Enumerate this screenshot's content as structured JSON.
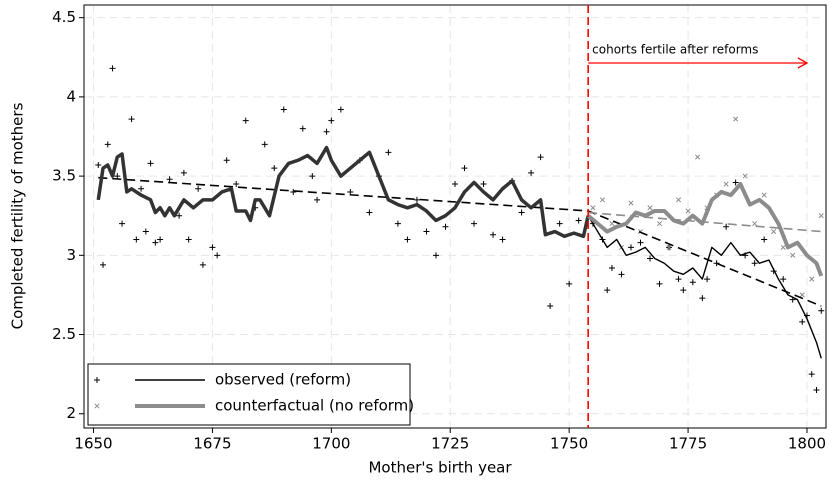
{
  "chart_data": {
    "type": "scatter",
    "xlabel": "Mother's birth year",
    "ylabel": "Completed fertility of mothers",
    "xlim": [
      1648,
      1804
    ],
    "ylim": [
      1.91,
      4.58
    ],
    "xticks": [
      1650,
      1675,
      1700,
      1725,
      1750,
      1775,
      1800
    ],
    "yticks": [
      2,
      2.5,
      3,
      3.5,
      4,
      4.5
    ],
    "grid": true,
    "reform_year": 1754,
    "reform_color": "#ff0000",
    "annotation": "cohorts fertile after reforms",
    "pre_reform_smooth": {
      "color": "#333333",
      "x": [
        1651,
        1652,
        1653,
        1654,
        1655,
        1656,
        1657,
        1658,
        1660,
        1662,
        1663,
        1664,
        1665,
        1666,
        1667,
        1669,
        1671,
        1673,
        1675,
        1677,
        1679,
        1680,
        1682,
        1683,
        1684,
        1685,
        1687,
        1689,
        1691,
        1693,
        1695,
        1697,
        1699,
        1700,
        1702,
        1704,
        1706,
        1708,
        1710,
        1712,
        1714,
        1716,
        1718,
        1720,
        1722,
        1724,
        1726,
        1728,
        1730,
        1732,
        1734,
        1736,
        1738,
        1740,
        1742,
        1744,
        1745,
        1747,
        1749,
        1751,
        1753,
        1754
      ],
      "values": [
        3.35,
        3.55,
        3.57,
        3.5,
        3.62,
        3.64,
        3.4,
        3.42,
        3.38,
        3.35,
        3.27,
        3.3,
        3.25,
        3.3,
        3.25,
        3.35,
        3.3,
        3.35,
        3.35,
        3.4,
        3.42,
        3.28,
        3.28,
        3.22,
        3.35,
        3.35,
        3.25,
        3.5,
        3.58,
        3.6,
        3.63,
        3.58,
        3.68,
        3.6,
        3.5,
        3.55,
        3.6,
        3.65,
        3.5,
        3.35,
        3.32,
        3.3,
        3.32,
        3.28,
        3.22,
        3.25,
        3.3,
        3.4,
        3.46,
        3.4,
        3.35,
        3.42,
        3.47,
        3.35,
        3.3,
        3.35,
        3.13,
        3.15,
        3.12,
        3.14,
        3.12,
        3.25
      ]
    },
    "series": [
      {
        "name": "observed (reform)",
        "color": "#000000",
        "marker": "+",
        "x": [
          1651,
          1652,
          1653,
          1654,
          1655,
          1656,
          1658,
          1659,
          1660,
          1661,
          1662,
          1663,
          1664,
          1666,
          1668,
          1669,
          1670,
          1672,
          1673,
          1675,
          1676,
          1678,
          1680,
          1682,
          1684,
          1686,
          1688,
          1690,
          1692,
          1694,
          1696,
          1697,
          1699,
          1700,
          1702,
          1704,
          1706,
          1708,
          1710,
          1712,
          1714,
          1716,
          1718,
          1720,
          1722,
          1724,
          1726,
          1728,
          1730,
          1732,
          1734,
          1736,
          1738,
          1740,
          1742,
          1744,
          1746,
          1748,
          1750,
          1752,
          1755,
          1757,
          1758,
          1759,
          1761,
          1763,
          1765,
          1767,
          1769,
          1771,
          1773,
          1774,
          1776,
          1778,
          1779,
          1781,
          1783,
          1785,
          1787,
          1789,
          1791,
          1793,
          1795,
          1797,
          1799,
          1800,
          1801,
          1802,
          1803
        ],
        "values": [
          3.57,
          2.94,
          3.7,
          4.18,
          3.5,
          3.2,
          3.86,
          3.1,
          3.42,
          3.15,
          3.58,
          3.08,
          3.1,
          3.48,
          3.25,
          3.52,
          3.1,
          3.42,
          2.94,
          3.05,
          3.0,
          3.6,
          3.45,
          3.85,
          3.3,
          3.7,
          3.55,
          3.92,
          3.4,
          3.8,
          3.5,
          3.35,
          3.78,
          3.85,
          3.92,
          3.4,
          3.6,
          3.27,
          3.5,
          3.65,
          3.2,
          3.1,
          3.35,
          3.15,
          3.0,
          3.18,
          3.45,
          3.55,
          3.2,
          3.45,
          3.13,
          3.1,
          3.47,
          3.27,
          3.52,
          3.62,
          2.68,
          3.2,
          2.82,
          3.22,
          3.2,
          3.1,
          2.78,
          2.92,
          2.88,
          3.05,
          3.08,
          2.98,
          2.82,
          3.05,
          2.85,
          2.78,
          2.83,
          2.73,
          2.85,
          2.95,
          3.18,
          3.46,
          3.0,
          2.95,
          3.1,
          2.9,
          2.85,
          2.72,
          2.58,
          2.62,
          2.25,
          2.15,
          2.65
        ],
        "smooth_x": [
          1754,
          1756,
          1758,
          1760,
          1762,
          1764,
          1766,
          1768,
          1770,
          1772,
          1774,
          1776,
          1778,
          1780,
          1782,
          1784,
          1786,
          1788,
          1790,
          1792,
          1794,
          1796,
          1798,
          1800,
          1802,
          1803
        ],
        "smooth_values": [
          3.25,
          3.15,
          3.05,
          3.1,
          3.0,
          3.02,
          3.05,
          2.98,
          2.95,
          2.9,
          2.88,
          2.92,
          2.85,
          3.05,
          3.0,
          3.08,
          3.0,
          3.02,
          2.95,
          2.97,
          2.85,
          2.75,
          2.72,
          2.6,
          2.45,
          2.35
        ],
        "trend_x": [
          1651,
          1754,
          1803
        ],
        "trend_values": [
          3.49,
          3.28,
          2.68
        ]
      },
      {
        "name": "counterfactual (no reform)",
        "color": "#8c8c8c",
        "marker": "x",
        "x": [
          1755,
          1757,
          1759,
          1761,
          1763,
          1765,
          1767,
          1769,
          1771,
          1773,
          1775,
          1777,
          1779,
          1781,
          1783,
          1785,
          1787,
          1789,
          1791,
          1793,
          1795,
          1797,
          1799,
          1801,
          1803
        ],
        "values": [
          3.3,
          3.35,
          3.2,
          3.05,
          3.33,
          3.15,
          3.3,
          3.2,
          3.05,
          3.35,
          3.28,
          3.62,
          3.3,
          3.38,
          3.45,
          3.86,
          3.5,
          3.2,
          3.38,
          3.15,
          3.05,
          3.0,
          2.75,
          2.85,
          3.25
        ],
        "smooth_x": [
          1754,
          1756,
          1758,
          1760,
          1762,
          1764,
          1766,
          1768,
          1770,
          1772,
          1774,
          1776,
          1778,
          1780,
          1782,
          1784,
          1786,
          1788,
          1790,
          1792,
          1794,
          1796,
          1798,
          1800,
          1802,
          1803
        ],
        "smooth_values": [
          3.25,
          3.2,
          3.15,
          3.18,
          3.2,
          3.27,
          3.25,
          3.28,
          3.28,
          3.22,
          3.2,
          3.25,
          3.2,
          3.35,
          3.4,
          3.38,
          3.45,
          3.32,
          3.35,
          3.3,
          3.2,
          3.05,
          3.08,
          3.0,
          2.95,
          2.87
        ],
        "trend_x": [
          1754,
          1803
        ],
        "trend_values": [
          3.27,
          3.15
        ]
      }
    ]
  }
}
